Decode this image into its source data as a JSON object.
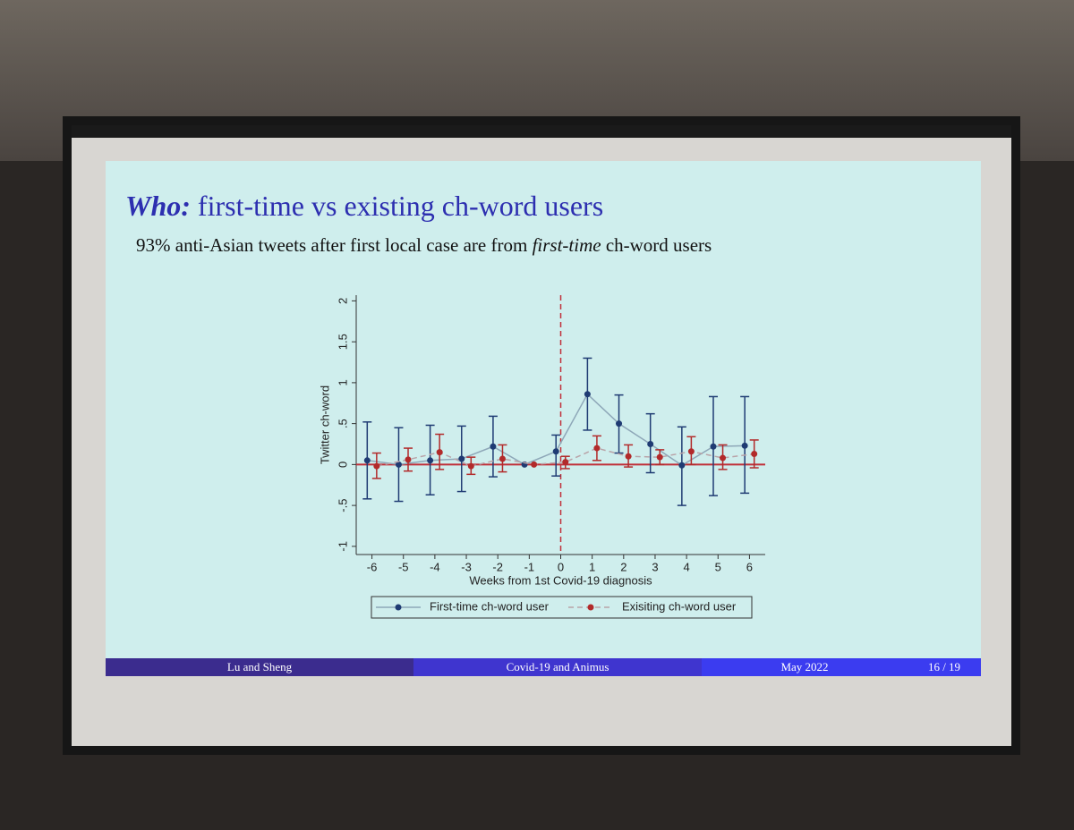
{
  "slide": {
    "title_lead": "Who:",
    "title_rest": "first-time vs existing ch-word users",
    "subtitle_start": "93% anti-Asian tweets after first local case are from",
    "subtitle_emph": "first-time",
    "subtitle_end": "ch-word users",
    "footer": [
      "Lu and Sheng",
      "Covid-19 and Animus",
      "May 2022",
      "16 / 19"
    ]
  },
  "chart_data": {
    "type": "errorbar",
    "x_label": "Weeks from 1st Covid-19 diagnosis",
    "y_label": "Twitter ch-word",
    "xlim": [
      -6.5,
      6.5
    ],
    "xticks": [
      -6,
      -5,
      -4,
      -3,
      -2,
      -1,
      0,
      1,
      2,
      3,
      4,
      5,
      6
    ],
    "ylim": [
      -1.1,
      2.07
    ],
    "yticks": [
      -1,
      {
        "value": -0.5,
        "label": "-.5"
      },
      0,
      {
        "value": 0.5,
        "label": ".5"
      },
      1,
      1.5,
      2
    ],
    "grid": false,
    "legend": "bottom",
    "series": [
      {
        "name": "First-time ch-word user",
        "color": "#1f3b73",
        "line_color": "#8ea7b8",
        "line_style": "solid",
        "x": [
          -6.15,
          -5.15,
          -4.15,
          -3.15,
          -2.15,
          -1.15,
          -0.15,
          0.85,
          1.85,
          2.85,
          3.85,
          4.85,
          5.85
        ],
        "values": [
          0.05,
          0.0,
          0.05,
          0.07,
          0.22,
          0.0,
          0.16,
          0.86,
          0.5,
          0.25,
          -0.01,
          0.22,
          0.23
        ],
        "lower": [
          -0.42,
          -0.45,
          -0.37,
          -0.33,
          -0.15,
          null,
          -0.14,
          0.42,
          0.14,
          -0.1,
          -0.5,
          -0.38,
          -0.35
        ],
        "upper": [
          0.52,
          0.45,
          0.48,
          0.47,
          0.59,
          null,
          0.36,
          1.3,
          0.85,
          0.62,
          0.46,
          0.83,
          0.83
        ]
      },
      {
        "name": "Exisiting ch-word user",
        "color": "#b22a2a",
        "line_color": "#b9a3a8",
        "line_style": "dashed",
        "x": [
          -5.85,
          -4.85,
          -3.85,
          -2.85,
          -1.85,
          -0.85,
          0.15,
          1.15,
          2.15,
          3.15,
          4.15,
          5.15,
          6.15
        ],
        "values": [
          -0.02,
          0.06,
          0.15,
          -0.02,
          0.07,
          0.0,
          0.03,
          0.2,
          0.1,
          0.09,
          0.16,
          0.08,
          0.13
        ],
        "lower": [
          -0.17,
          -0.08,
          -0.06,
          -0.12,
          -0.09,
          null,
          -0.05,
          0.05,
          -0.03,
          0.0,
          0.0,
          -0.06,
          -0.04
        ],
        "upper": [
          0.14,
          0.2,
          0.37,
          0.09,
          0.24,
          null,
          0.1,
          0.35,
          0.24,
          0.18,
          0.34,
          0.24,
          0.3
        ]
      }
    ]
  }
}
